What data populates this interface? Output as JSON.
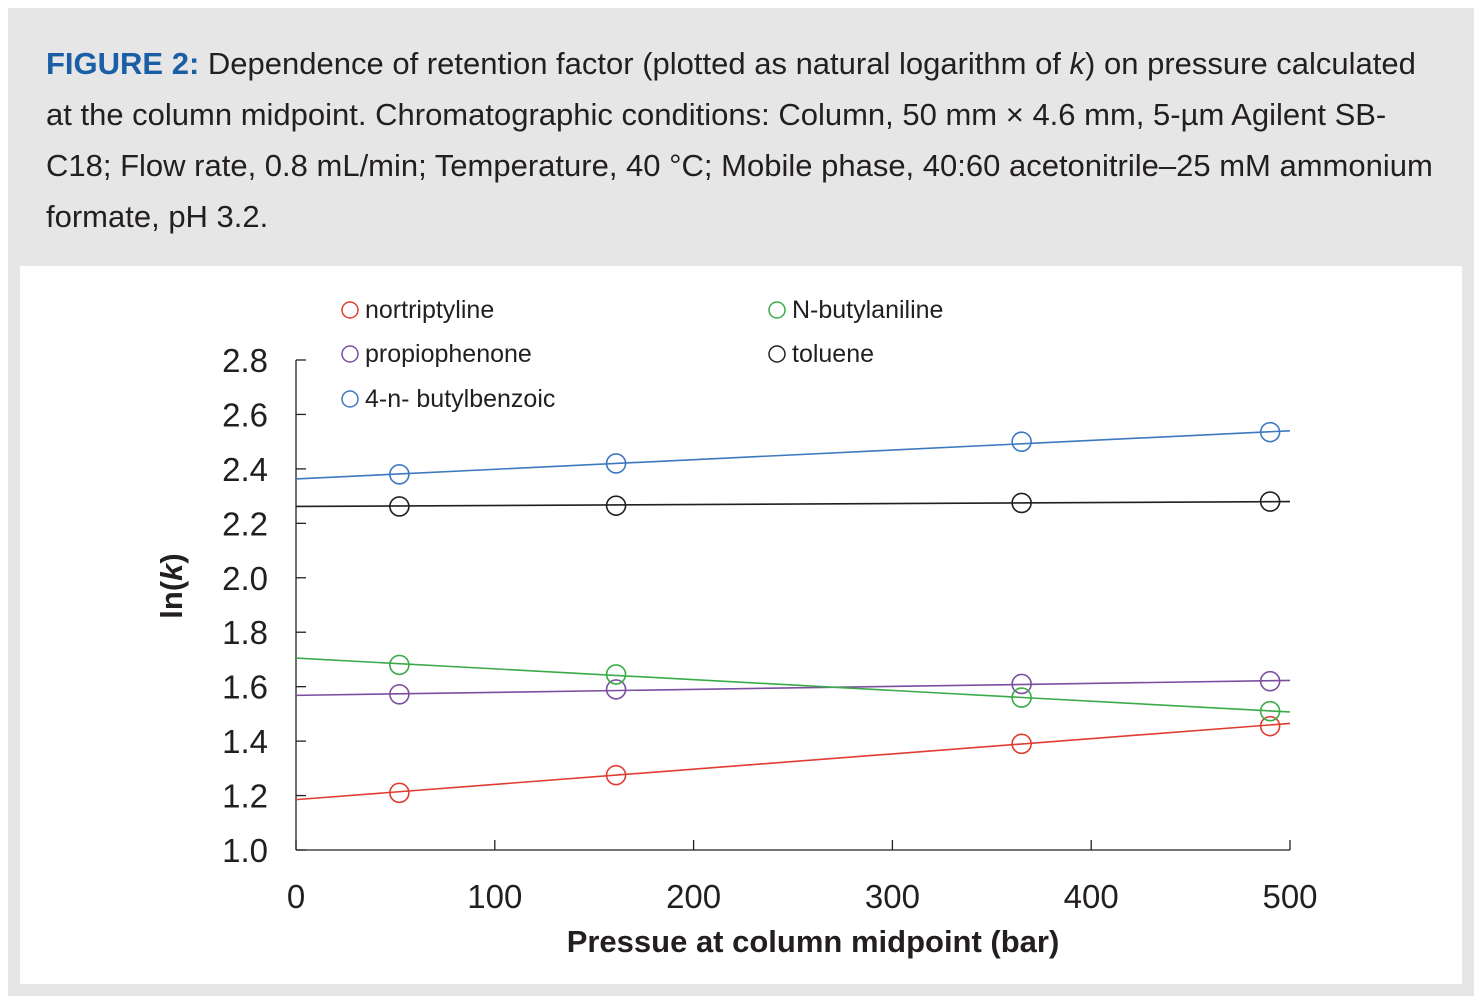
{
  "caption": {
    "label": "FIGURE 2:",
    "text_part1": " Dependence of retention factor (plotted as natural logarithm of ",
    "k": "k",
    "text_part2": ") on pressure calculated at the column midpoint. Chromatographic conditions: Column, 50 mm × 4.6 mm, 5-µm Agilent SB-C18; Flow rate, 0.8 mL/min; Temperature, 40 °C; Mobile phase, 40:60 acetonitrile–25 mM ammonium formate, pH 3.2."
  },
  "chart_data": {
    "type": "scatter",
    "xlabel": "Pressue at column midpoint (bar)",
    "ylabel_prefix": "ln(",
    "ylabel_k": "k",
    "ylabel_suffix": ")",
    "xlim": [
      0,
      500
    ],
    "ylim": [
      1.0,
      2.8
    ],
    "x_ticks": [
      0,
      100,
      200,
      300,
      400,
      500
    ],
    "x_tick_labels": [
      "0",
      "100",
      "200",
      "300",
      "400",
      "500"
    ],
    "y_ticks": [
      1.0,
      1.2,
      1.4,
      1.6,
      1.8,
      2.0,
      2.2,
      2.4,
      2.6,
      2.8
    ],
    "y_tick_labels": [
      "1.0",
      "1.2",
      "1.4",
      "1.6",
      "1.8",
      "2.0",
      "2.2",
      "2.4",
      "2.6",
      "2.8"
    ],
    "grid": false,
    "legend_position": "top",
    "series": [
      {
        "name": "nortriptyline",
        "color": "#e03c31",
        "x": [
          52,
          161,
          365,
          490
        ],
        "y": [
          1.21,
          1.275,
          1.39,
          1.455
        ],
        "fit_x": [
          0,
          500
        ],
        "fit_y": [
          1.185,
          1.465
        ]
      },
      {
        "name": "propiophenone",
        "color": "#7b4fa0",
        "x": [
          52,
          161,
          365,
          490
        ],
        "y": [
          1.572,
          1.59,
          1.61,
          1.62
        ],
        "fit_x": [
          0,
          500
        ],
        "fit_y": [
          1.568,
          1.623
        ]
      },
      {
        "name": "4-n- butylbenzoic",
        "color": "#3d78c0",
        "x": [
          52,
          161,
          365,
          490
        ],
        "y": [
          2.38,
          2.42,
          2.5,
          2.535
        ],
        "fit_x": [
          0,
          500
        ],
        "fit_y": [
          2.363,
          2.54
        ]
      },
      {
        "name": "N-butylaniline",
        "color": "#3aab48",
        "x": [
          52,
          161,
          365,
          490
        ],
        "y": [
          1.68,
          1.645,
          1.56,
          1.51
        ],
        "fit_x": [
          0,
          500
        ],
        "fit_y": [
          1.705,
          1.507
        ]
      },
      {
        "name": "toluene",
        "color": "#231f20",
        "x": [
          52,
          161,
          365,
          490
        ],
        "y": [
          2.262,
          2.265,
          2.275,
          2.28
        ],
        "fit_x": [
          0,
          500
        ],
        "fit_y": [
          2.262,
          2.28
        ]
      }
    ]
  }
}
